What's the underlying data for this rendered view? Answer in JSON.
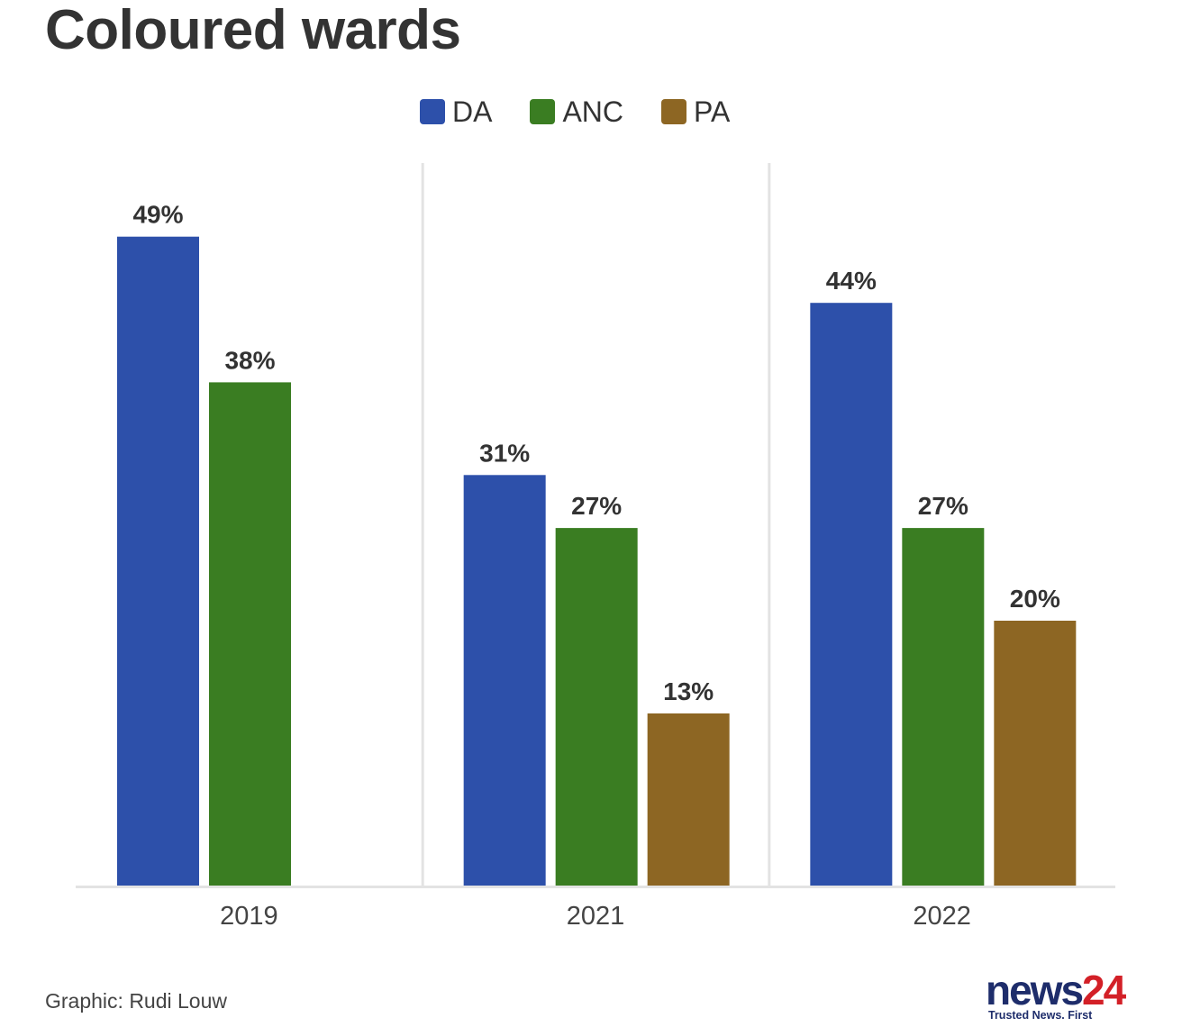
{
  "title": "Coloured wards",
  "legend": [
    {
      "label": "DA",
      "color": "#2d50aa"
    },
    {
      "label": "ANC",
      "color": "#3a7d22"
    },
    {
      "label": "PA",
      "color": "#8d6623"
    }
  ],
  "chart_data": {
    "type": "bar",
    "categories": [
      "2019",
      "2021",
      "2022"
    ],
    "series": [
      {
        "name": "DA",
        "values": [
          49,
          31,
          44
        ],
        "labels": [
          "49%",
          "31%",
          "44%"
        ],
        "color": "#2d50aa"
      },
      {
        "name": "ANC",
        "values": [
          38,
          27,
          27
        ],
        "labels": [
          "38%",
          "27%",
          "27%"
        ],
        "color": "#3a7d22"
      },
      {
        "name": "PA",
        "values": [
          null,
          13,
          20
        ],
        "labels": [
          "",
          "13%",
          "20%"
        ],
        "color": "#8d6623"
      }
    ],
    "title": "Coloured wards",
    "xlabel": "",
    "ylabel": "",
    "ylim": [
      0,
      55
    ],
    "legend_position": "top-center",
    "grid": false
  },
  "footer": {
    "credit": "Graphic: Rudi Louw",
    "logo_word": "news",
    "logo_number": "24",
    "logo_tagline": "Trusted News. First"
  }
}
